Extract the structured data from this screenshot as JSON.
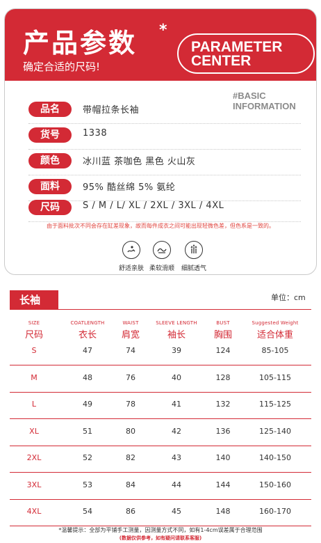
{
  "header": {
    "title": "产品参数",
    "star": "*",
    "subtitle": "确定合适的尺码!",
    "badge_line1": "PARAMETER",
    "badge_line2": "CENTER"
  },
  "basic_label": {
    "line1": "#BASIC",
    "line2": "INFORMATION"
  },
  "info": [
    {
      "label": "品名",
      "value": "带帽拉条长袖"
    },
    {
      "label": "货号",
      "value": "1338"
    },
    {
      "label": "颜色",
      "value": "冰川蓝  茶咖色  黑色  火山灰"
    },
    {
      "label": "面料",
      "value": "95% 酷丝绵  5% 氨纶"
    },
    {
      "label": "尺码",
      "value": "S / M / L/ XL / 2XL / 3XL / 4XL"
    }
  ],
  "note": "由于面料批次不同会存在缸差现象，故而每件成衣之间可能出现轻微色差，但色系是一致的。",
  "features": [
    {
      "icon": "comfort-icon",
      "label": "舒适亲肤"
    },
    {
      "icon": "soft-icon",
      "label": "柔软滑顺"
    },
    {
      "icon": "breathable-icon",
      "label": "细腻透气"
    }
  ],
  "size_section": {
    "tag": "长袖",
    "unit": "单位：cm",
    "columns": [
      {
        "en": "SIZE",
        "cn": "尺码"
      },
      {
        "en": "COATLENGTH",
        "cn": "衣长"
      },
      {
        "en": "WAIST",
        "cn": "肩宽"
      },
      {
        "en": "SLEEVE LENGTH",
        "cn": "袖长"
      },
      {
        "en": "BUST",
        "cn": "胸围"
      },
      {
        "en": "Suggested Weight",
        "cn": "适合体重"
      }
    ],
    "rows": [
      [
        "S",
        "47",
        "74",
        "39",
        "124",
        "85-105"
      ],
      [
        "M",
        "48",
        "76",
        "40",
        "128",
        "105-115"
      ],
      [
        "L",
        "49",
        "78",
        "41",
        "132",
        "115-125"
      ],
      [
        "XL",
        "51",
        "80",
        "42",
        "136",
        "125-140"
      ],
      [
        "2XL",
        "52",
        "82",
        "43",
        "140",
        "140-150"
      ],
      [
        "3XL",
        "53",
        "84",
        "44",
        "144",
        "150-160"
      ],
      [
        "4XL",
        "54",
        "86",
        "45",
        "148",
        "160-170"
      ]
    ]
  },
  "footer": {
    "line1": "*温馨提示：全部为平铺手工测量，因测量方式不同，如有1-4cm误差属于合理范围",
    "line2": "(数据仅供参考，如有疑问请联系客服)"
  },
  "colors": {
    "accent": "#d32a35",
    "text": "#333333",
    "note": "#e0453f"
  }
}
